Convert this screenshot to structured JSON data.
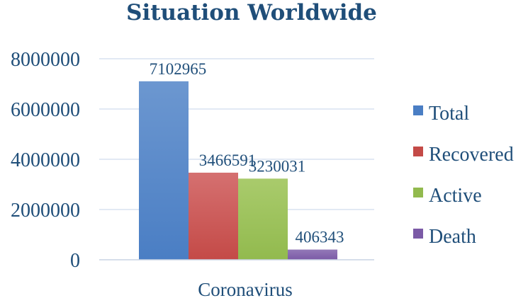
{
  "chart_data": {
    "type": "bar",
    "title": "Situation Worldwide",
    "categories": [
      "Coronavirus"
    ],
    "series": [
      {
        "name": "Total",
        "values": [
          7102965
        ],
        "color": "#4A7EC4",
        "color_top": "#6C97D0"
      },
      {
        "name": "Recovered",
        "values": [
          3466591
        ],
        "color": "#C44A47",
        "color_top": "#D57070"
      },
      {
        "name": "Active",
        "values": [
          3230031
        ],
        "color": "#92BA4E",
        "color_top": "#A9CB6C"
      },
      {
        "name": "Death",
        "values": [
          406343
        ],
        "color": "#7B5AA6",
        "color_top": "#9379B8"
      }
    ],
    "y_ticks": [
      "0",
      "2000000",
      "4000000",
      "6000000",
      "8000000"
    ],
    "ylim": [
      0,
      8000000
    ],
    "grid": true,
    "legend_position": "right",
    "data_labels": [
      "7102965",
      "3466591",
      "3230031",
      "406343"
    ]
  }
}
